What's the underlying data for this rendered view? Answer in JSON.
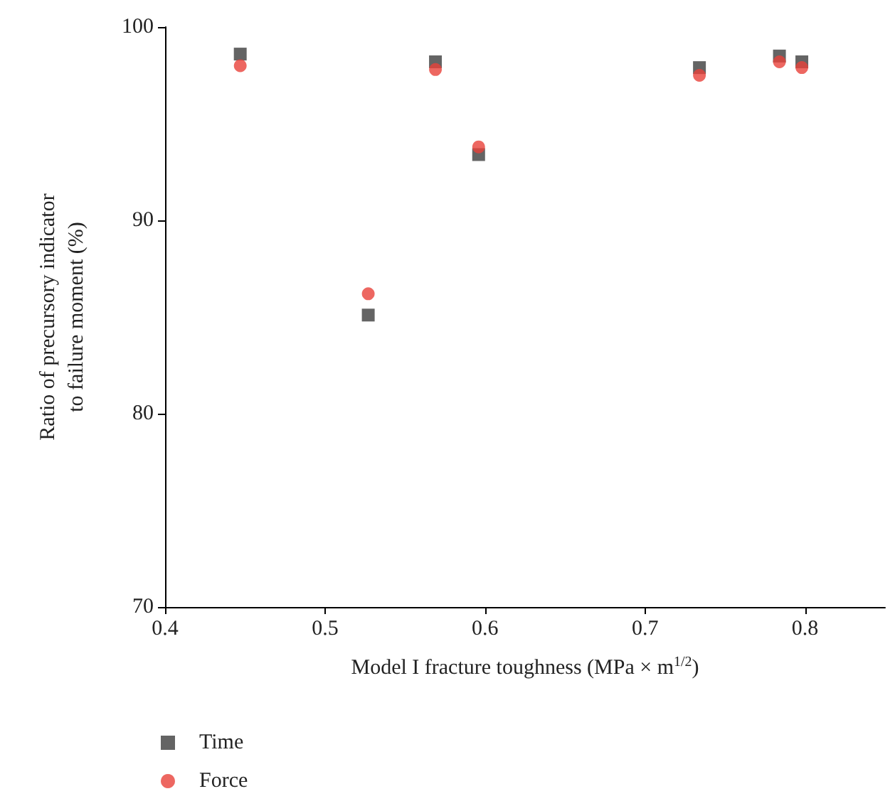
{
  "chart_data": {
    "type": "scatter",
    "xlabel": "Model I fracture toughness (MPa × m$^{1/2}$)",
    "ylabel": "Ratio of precursory indicator to failure moment (%)",
    "xlim": [
      0.4,
      0.85
    ],
    "xticks": [
      0.4,
      0.5,
      0.6,
      0.7,
      0.8
    ],
    "ylim": [
      70,
      100
    ],
    "yticks": [
      70,
      80,
      90,
      100
    ],
    "grid": false,
    "legend": "bottom left",
    "x": [
      0.447,
      0.527,
      0.569,
      0.596,
      0.734,
      0.784,
      0.798
    ],
    "series": [
      {
        "name": "Time",
        "color": "#3d3d3d",
        "marker": "square",
        "values": [
          98.6,
          85.1,
          98.2,
          93.4,
          97.9,
          98.5,
          98.2
        ]
      },
      {
        "name": "Force",
        "color": "#e8413a",
        "marker": "circle",
        "values": [
          98.0,
          86.2,
          97.8,
          93.8,
          97.5,
          98.2,
          97.9
        ]
      }
    ]
  }
}
